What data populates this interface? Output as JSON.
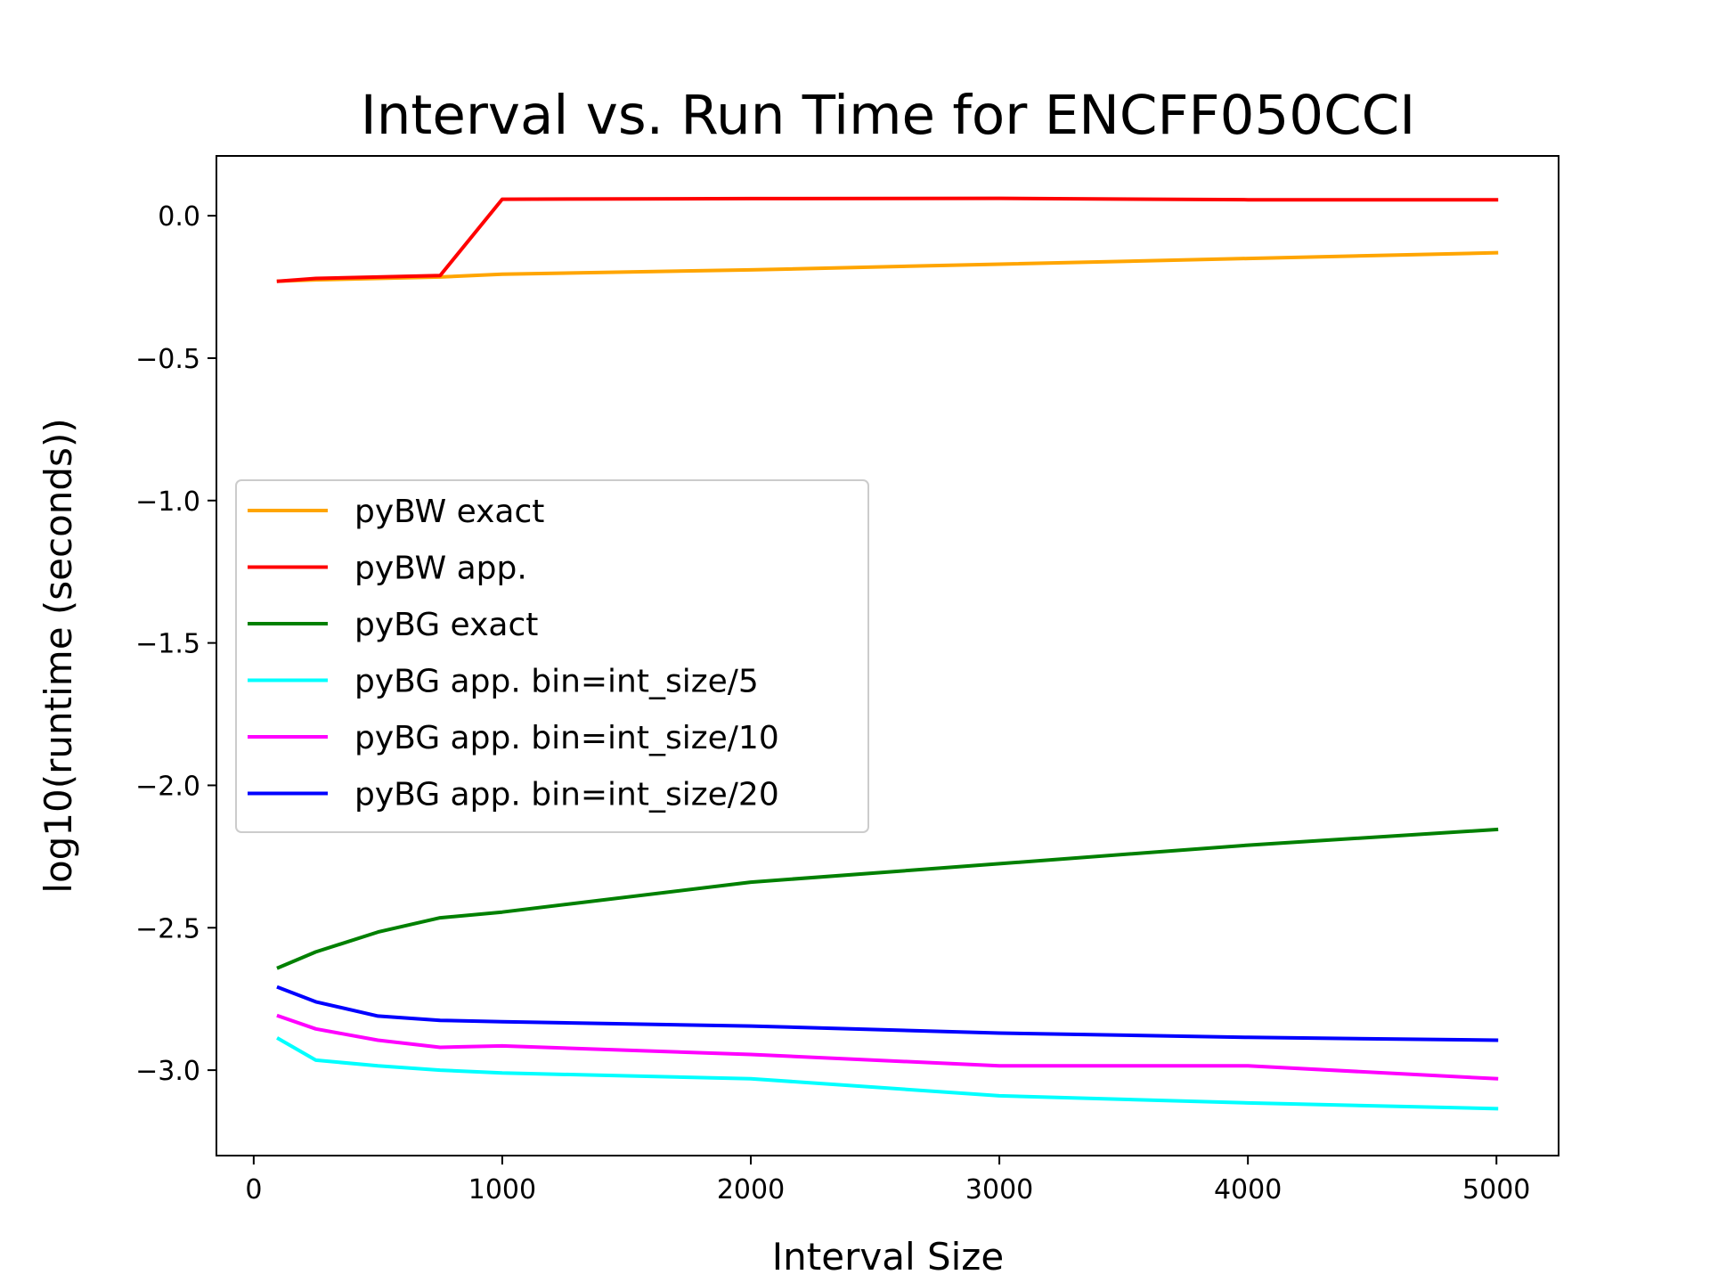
{
  "chart_data": {
    "type": "line",
    "title": "Interval vs. Run Time for ENCFF050CCI",
    "xlabel": "Interval Size",
    "ylabel": "log10(runtime (seconds))",
    "xlim": [
      -150,
      5250
    ],
    "ylim": [
      -3.3,
      0.21
    ],
    "xticks": [
      0,
      1000,
      2000,
      3000,
      4000,
      5000
    ],
    "xtick_labels": [
      "0",
      "1000",
      "2000",
      "3000",
      "4000",
      "5000"
    ],
    "yticks": [
      0.0,
      -0.5,
      -1.0,
      -1.5,
      -2.0,
      -2.5,
      -3.0
    ],
    "ytick_labels": [
      "0.0",
      "−0.5",
      "−1.0",
      "−1.5",
      "−2.0",
      "−2.5",
      "−3.0"
    ],
    "grid": false,
    "legend_position": "center-left",
    "x": [
      100,
      250,
      500,
      750,
      1000,
      2000,
      3000,
      4000,
      5000
    ],
    "series": [
      {
        "name": "pyBW exact",
        "color": "#FFA500",
        "values": [
          -0.23,
          -0.225,
          -0.22,
          -0.215,
          -0.205,
          -0.19,
          -0.17,
          -0.15,
          -0.13
        ]
      },
      {
        "name": "pyBW app.",
        "color": "#FF0000",
        "values": [
          -0.23,
          -0.22,
          -0.215,
          -0.21,
          0.058,
          0.06,
          0.061,
          0.056,
          0.056
        ]
      },
      {
        "name": "pyBG exact",
        "color": "#008000",
        "values": [
          -2.64,
          -2.585,
          -2.515,
          -2.465,
          -2.445,
          -2.34,
          -2.275,
          -2.21,
          -2.155
        ]
      },
      {
        "name": "pyBG app. bin=int_size/5",
        "color": "#00FFFF",
        "values": [
          -2.89,
          -2.965,
          -2.985,
          -3.0,
          -3.01,
          -3.03,
          -3.09,
          -3.115,
          -3.135
        ]
      },
      {
        "name": "pyBG app. bin=int_size/10",
        "color": "#FF00FF",
        "values": [
          -2.81,
          -2.855,
          -2.895,
          -2.92,
          -2.915,
          -2.945,
          -2.985,
          -2.985,
          -3.03
        ]
      },
      {
        "name": "pyBG app. bin=int_size/20",
        "color": "#0000FF",
        "values": [
          -2.71,
          -2.76,
          -2.81,
          -2.825,
          -2.83,
          -2.845,
          -2.87,
          -2.885,
          -2.895
        ]
      }
    ]
  }
}
